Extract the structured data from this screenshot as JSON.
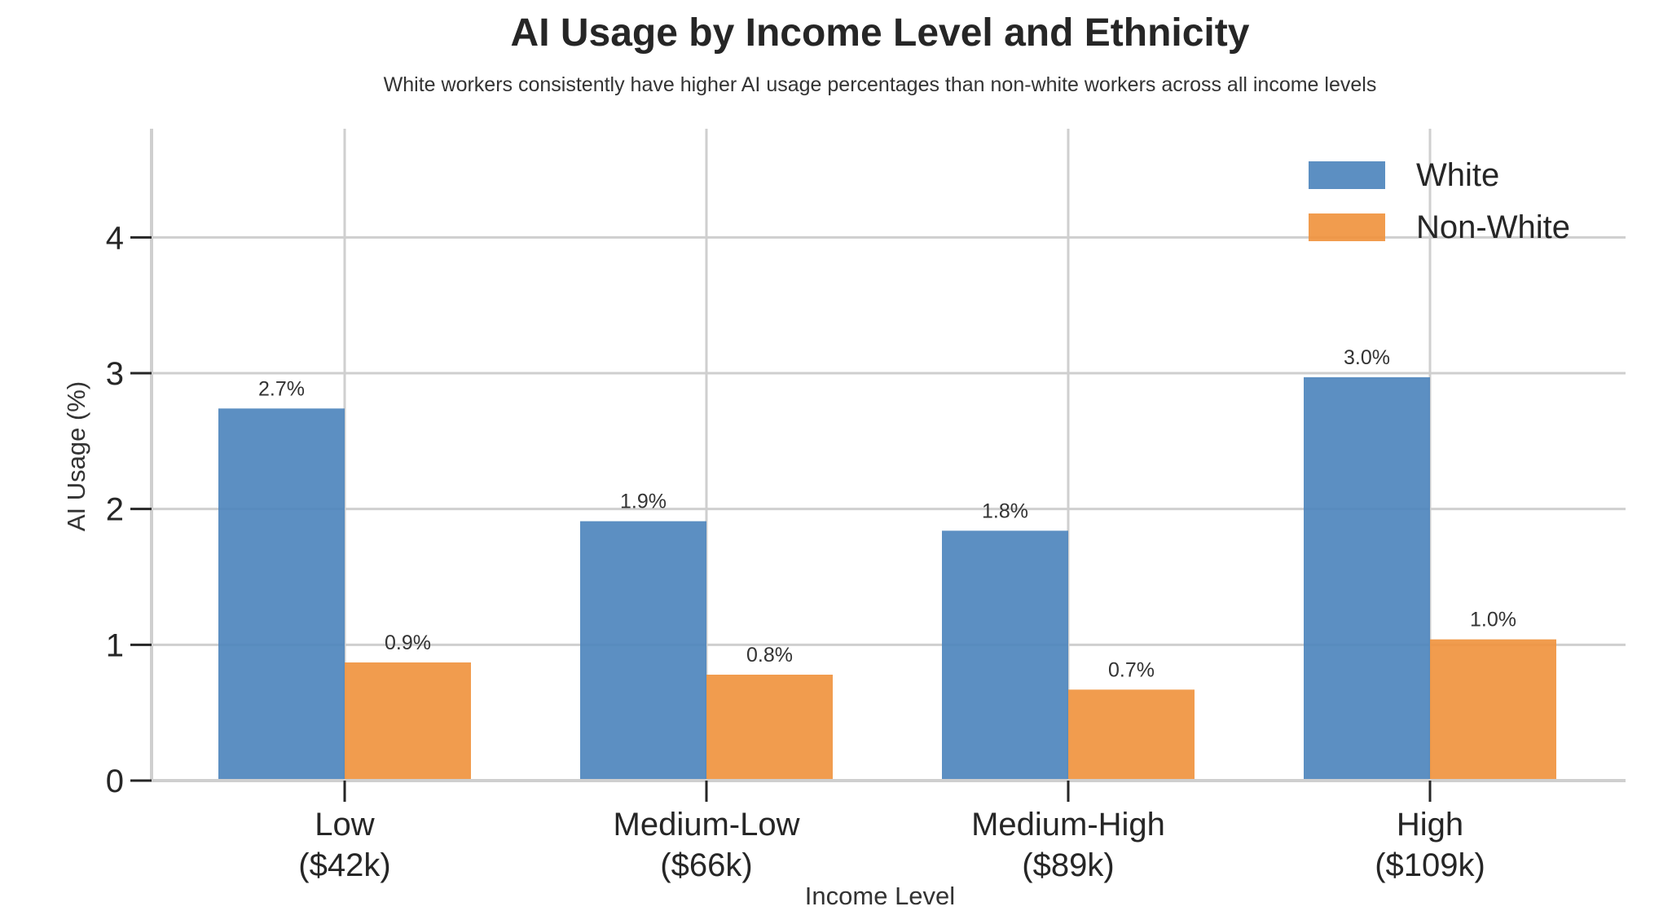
{
  "chart_data": {
    "type": "bar",
    "title": "AI Usage by Income Level and Ethnicity",
    "subtitle": "White workers consistently have higher AI usage percentages than non-white workers across all income levels",
    "xlabel": "Income Level",
    "ylabel": "AI Usage (%)",
    "categories": [
      [
        "Low",
        "($42k)"
      ],
      [
        "Medium-Low",
        "($66k)"
      ],
      [
        "Medium-High",
        "($89k)"
      ],
      [
        "High",
        "($109k)"
      ]
    ],
    "series": [
      {
        "name": "White",
        "color": "#4e86bd",
        "values": [
          2.74,
          1.91,
          1.84,
          2.97
        ],
        "labels": [
          "2.7%",
          "1.9%",
          "1.8%",
          "3.0%"
        ]
      },
      {
        "name": "Non-White",
        "color": "#f0943f",
        "values": [
          0.87,
          0.78,
          0.67,
          1.04
        ],
        "labels": [
          "0.9%",
          "0.8%",
          "0.7%",
          "1.0%"
        ]
      }
    ],
    "ylim": [
      0,
      4.8
    ],
    "yticks": [
      0,
      1,
      2,
      3,
      4
    ],
    "grid": true,
    "legend": "top-right"
  }
}
